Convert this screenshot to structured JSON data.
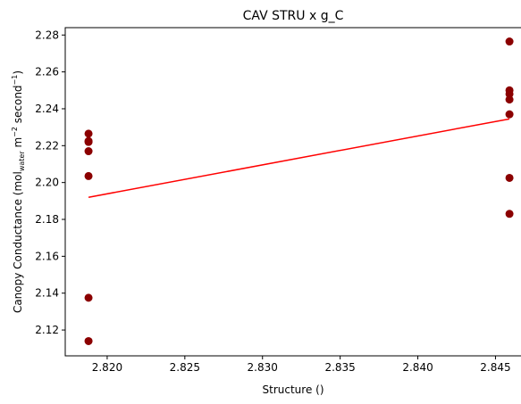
{
  "chart_data": {
    "type": "scatter",
    "title": "CAV STRU x g_C",
    "xlabel": "Structure ()",
    "ylabel": {
      "main": "Canopy Conductance (mol",
      "sub": "water",
      "mid": " m",
      "sup1": "−2",
      "mid2": " second",
      "sup2": "−1",
      "end": ")"
    },
    "xlim": [
      2.8173,
      2.8467
    ],
    "ylim": [
      2.106,
      2.284
    ],
    "xticks": [
      2.82,
      2.825,
      2.83,
      2.835,
      2.84,
      2.845
    ],
    "xtick_labels": [
      "2.820",
      "2.825",
      "2.830",
      "2.835",
      "2.840",
      "2.845"
    ],
    "yticks": [
      2.12,
      2.14,
      2.16,
      2.18,
      2.2,
      2.22,
      2.24,
      2.26,
      2.28
    ],
    "ytick_labels": [
      "2.12",
      "2.14",
      "2.16",
      "2.18",
      "2.20",
      "2.22",
      "2.24",
      "2.26",
      "2.28"
    ],
    "grid": false,
    "points": [
      {
        "x": 2.8188,
        "y": 2.2265
      },
      {
        "x": 2.8188,
        "y": 2.2225
      },
      {
        "x": 2.8188,
        "y": 2.222
      },
      {
        "x": 2.8188,
        "y": 2.217
      },
      {
        "x": 2.8188,
        "y": 2.2035
      },
      {
        "x": 2.8188,
        "y": 2.1375
      },
      {
        "x": 2.8188,
        "y": 2.114
      },
      {
        "x": 2.8459,
        "y": 2.2765
      },
      {
        "x": 2.8459,
        "y": 2.25
      },
      {
        "x": 2.8459,
        "y": 2.248
      },
      {
        "x": 2.8459,
        "y": 2.245
      },
      {
        "x": 2.8459,
        "y": 2.237
      },
      {
        "x": 2.8459,
        "y": 2.2025
      },
      {
        "x": 2.8459,
        "y": 2.183
      }
    ],
    "fit_line": {
      "x": [
        2.8188,
        2.8459
      ],
      "y": [
        2.192,
        2.2345
      ]
    },
    "colors": {
      "points": "#8b0000",
      "fit_line": "#ff0000",
      "axes": "#000000"
    }
  }
}
